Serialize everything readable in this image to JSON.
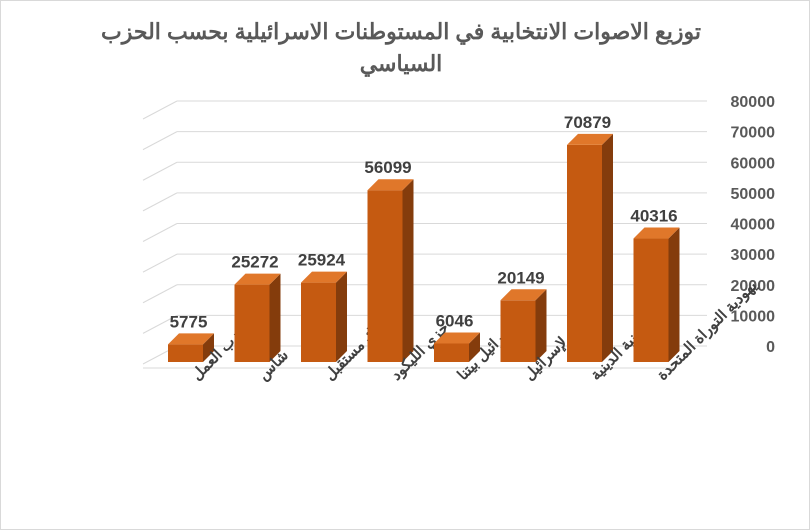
{
  "chart_data": {
    "type": "bar",
    "title_lines": [
      "توزيع الاصوات الانتخابية في المستوطنات الاسرائيلية بحسب الحزب",
      "السياسي"
    ],
    "categories": [
      "حزب العمل",
      "شاس",
      "هناك مستقبل",
      "حزي الليكود",
      "إسرائيل بيتنا",
      "الصمود لإسرائيل",
      "الصهيونية الدينية",
      "يهودية التوراة المتحدة"
    ],
    "values": [
      5775,
      25272,
      25924,
      56099,
      6046,
      20149,
      70879,
      40316
    ],
    "y_ticks": [
      "80000",
      "70000",
      "60000",
      "50000",
      "40000",
      "30000",
      "20000",
      "10000",
      "0"
    ],
    "ylim": [
      0,
      80000
    ],
    "grid": true,
    "style": "3d-column",
    "y_axis_side": "right",
    "legend": "none",
    "colors": {
      "bar_front": "#c55a11",
      "bar_side": "#843c0c",
      "bar_top": "#e0772a",
      "grid": "#d9d9d9",
      "label": "#404040",
      "tick": "#595959"
    }
  }
}
